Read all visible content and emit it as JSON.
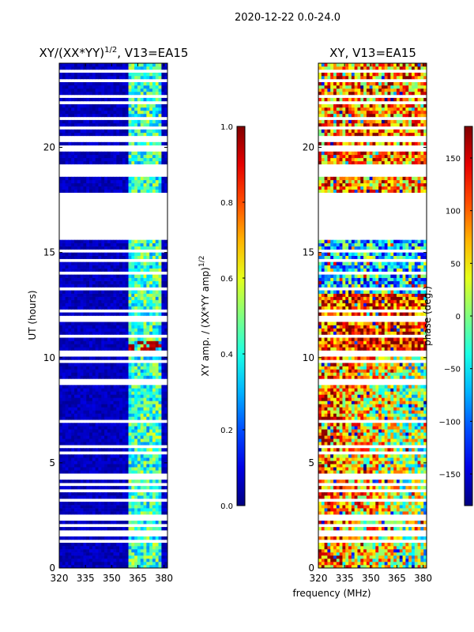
{
  "suptitle": "2020-12-22 0.0-24.0",
  "shared_xlabel": "frequency (MHz)",
  "colors": {
    "jet": [
      "#000080",
      "#0000ff",
      "#00ffff",
      "#ffff00",
      "#ff0000",
      "#800000"
    ]
  },
  "chart_data": [
    {
      "type": "heatmap",
      "title": "XY/(XX*YY)$^{1/2}$, V13=EA15",
      "title_main": "XY/(XX*YY)",
      "title_sup": "1/2",
      "title_tail": ", V13=EA15",
      "xlabel": "",
      "ylabel": "UT (hours)",
      "xlim": [
        320,
        382
      ],
      "ylim": [
        0,
        24
      ],
      "xticks": [
        320,
        335,
        350,
        365,
        380
      ],
      "yticks": [
        0,
        5,
        10,
        15,
        20
      ],
      "flag_bands": [
        [
          15.8,
          17.9
        ],
        [
          18.6,
          19.2
        ]
      ],
      "rfi_band_mhz": [
        360,
        378
      ],
      "colorbar": {
        "label": "XY amp. / (XX*YY amp)$^{1/2}$",
        "label_main": "XY amp. / (XX*YY amp)",
        "label_sup": "1/2",
        "range": [
          0.0,
          1.0
        ],
        "ticks": [
          0.0,
          0.2,
          0.4,
          0.6,
          0.8,
          1.0
        ],
        "tick_labels": [
          "0.0",
          "0.2",
          "0.4",
          "0.6",
          "0.8",
          "1.0"
        ]
      }
    },
    {
      "type": "heatmap",
      "title": "XY, V13=EA15",
      "xlabel": "frequency (MHz)",
      "ylabel": "",
      "xlim": [
        320,
        382
      ],
      "ylim": [
        0,
        24
      ],
      "xticks": [
        320,
        335,
        350,
        365,
        380
      ],
      "yticks": [
        0,
        5,
        10,
        15,
        20
      ],
      "flag_bands": [
        [
          15.8,
          17.9
        ],
        [
          18.6,
          19.2
        ]
      ],
      "colorbar": {
        "label": "phase (deg.)",
        "range": [
          -180,
          180
        ],
        "ticks": [
          -150,
          -100,
          -50,
          0,
          50,
          100,
          150
        ],
        "tick_labels": [
          "−150",
          "−100",
          "−50",
          "0",
          "50",
          "100",
          "150"
        ]
      }
    }
  ]
}
